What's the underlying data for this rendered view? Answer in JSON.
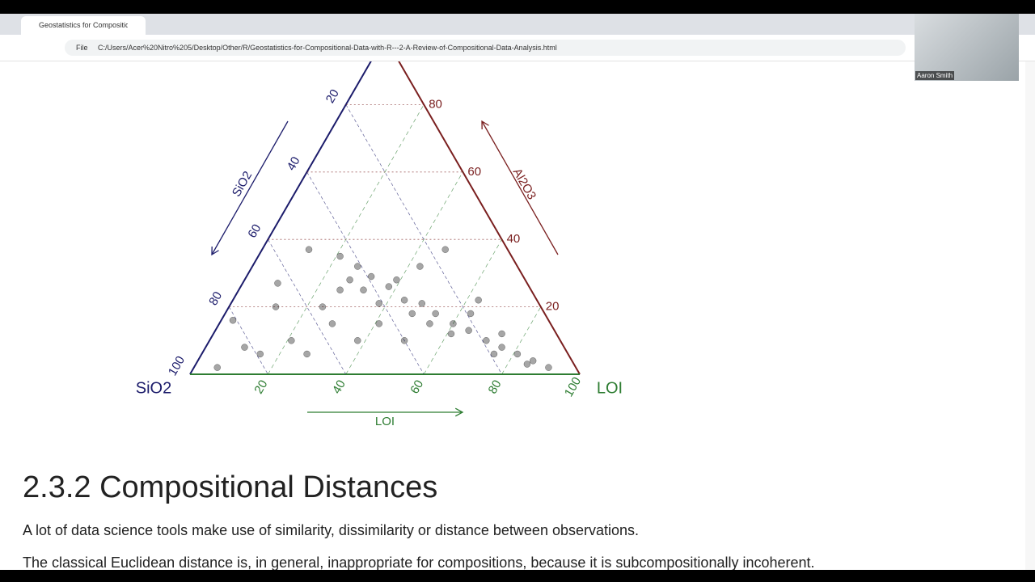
{
  "browser": {
    "tab_title": "Geostatistics for Compositional",
    "file_label": "File",
    "url": "C:/Users/Acer%20Nitro%205/Desktop/Other/R/Geostatistics-for-Compositional-Data-with-R---2-A-Review-of-Compositional-Data-Analysis.html"
  },
  "webcam": {
    "name": "Aaron Smith"
  },
  "chart_data": {
    "type": "ternary",
    "axes": [
      {
        "name": "SiO2",
        "color": "#1c1c6b",
        "ticks": [
          20,
          40,
          60,
          80,
          100
        ]
      },
      {
        "name": "Al2O3",
        "color": "#7a1f1f",
        "ticks": [
          20,
          40,
          60,
          80
        ]
      },
      {
        "name": "LOI",
        "color": "#2e7d32",
        "ticks": [
          20,
          40,
          60,
          80,
          100
        ]
      }
    ],
    "grid": true,
    "point_color": "#000000",
    "values": {
      "SiO2": [
        44,
        41,
        39,
        36,
        34,
        30,
        28,
        25,
        22,
        19,
        16,
        13,
        10,
        7,
        51,
        64,
        81,
        92,
        79,
        67,
        52,
        40,
        44,
        56,
        49,
        16,
        15,
        25,
        56,
        69,
        82,
        68,
        43,
        41,
        34,
        31,
        27,
        19,
        12,
        45,
        33,
        19,
        14
      ],
      "Al2O3": [
        35,
        32,
        29,
        26,
        22,
        21,
        18,
        15,
        13,
        10,
        8,
        6,
        4,
        2,
        37,
        27,
        16,
        2,
        6,
        6,
        10,
        10,
        15,
        20,
        25,
        37,
        22,
        32,
        15,
        10,
        8,
        20,
        25,
        21,
        18,
        15,
        12,
        6,
        3,
        28,
        28,
        18,
        12
      ],
      "LOI": [
        21,
        27,
        32,
        38,
        44,
        49,
        54,
        60,
        65,
        71,
        76,
        81,
        86,
        91,
        12,
        9,
        3,
        6,
        15,
        27,
        38,
        50,
        41,
        24,
        26,
        47,
        63,
        43,
        29,
        21,
        10,
        12,
        32,
        38,
        48,
        54,
        61,
        75,
        85,
        27,
        39,
        63,
        74
      ]
    }
  },
  "section": {
    "heading": "2.3.2 Compositional Distances",
    "paragraphs": [
      "A lot of data science tools make use of similarity, dissimilarity or distance between observations.",
      "The classical Euclidean distance is, in general, inappropriate for compositions, because it is subcompositionally incoherent."
    ]
  }
}
